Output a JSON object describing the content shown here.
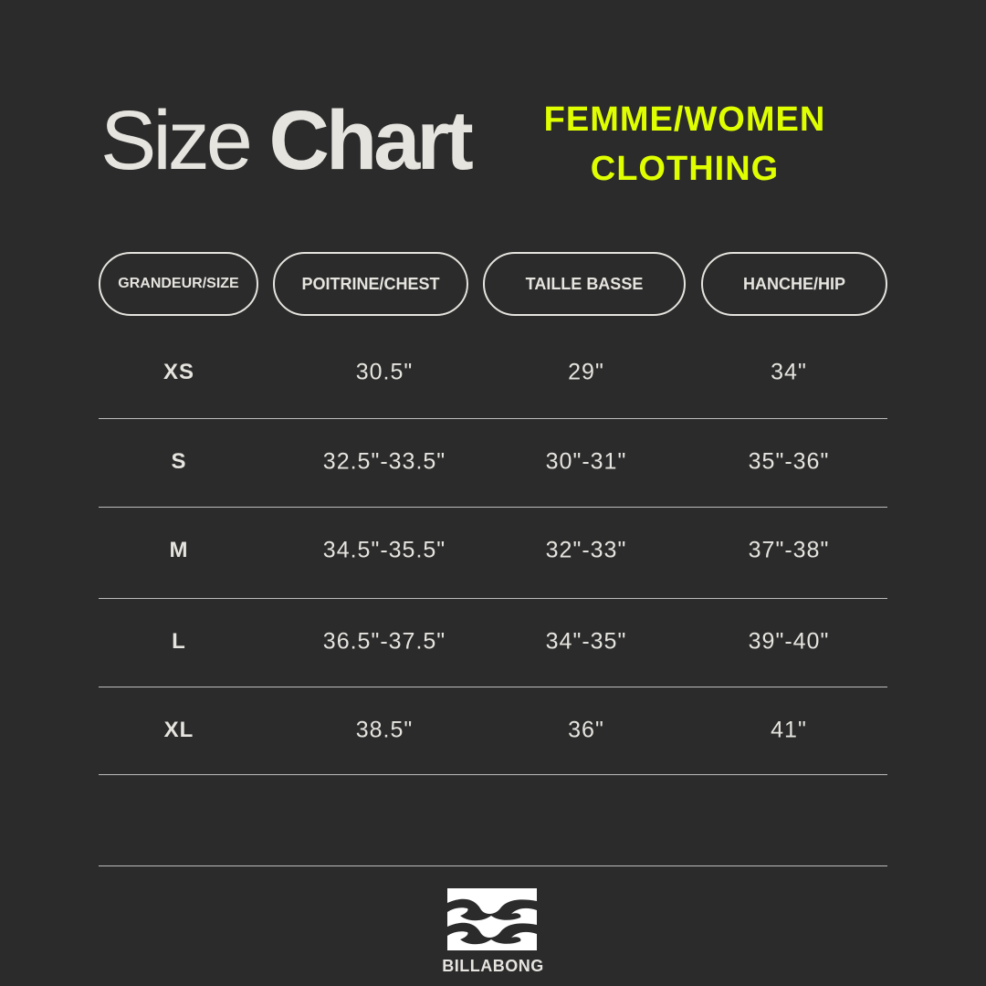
{
  "title": {
    "light": "Size",
    "bold": "Chart"
  },
  "subtitle": {
    "line1": "FEMME/WOMEN",
    "line2": "CLOTHING"
  },
  "colors": {
    "background": "#2b2b2b",
    "text": "#e6e4df",
    "accent": "#dfff00"
  },
  "headers": [
    "GRANDEUR/SIZE",
    "POITRINE/CHEST",
    "TAILLE BASSE",
    "HANCHE/HIP"
  ],
  "rows": [
    [
      "XS",
      "30.5\"",
      "29\"",
      "34\""
    ],
    [
      "S",
      "32.5\"-33.5\"",
      "30\"-31\"",
      "35\"-36\""
    ],
    [
      "M",
      "34.5\"-35.5\"",
      "32\"-33\"",
      "37\"-38\""
    ],
    [
      "L",
      "36.5\"-37.5\"",
      "34\"-35\"",
      "39\"-40\""
    ],
    [
      "XL",
      "38.5\"",
      "36\"",
      "41\""
    ]
  ],
  "brand": {
    "name": "BILLABONG",
    "logo_icon": "billabong-wave-logo"
  }
}
